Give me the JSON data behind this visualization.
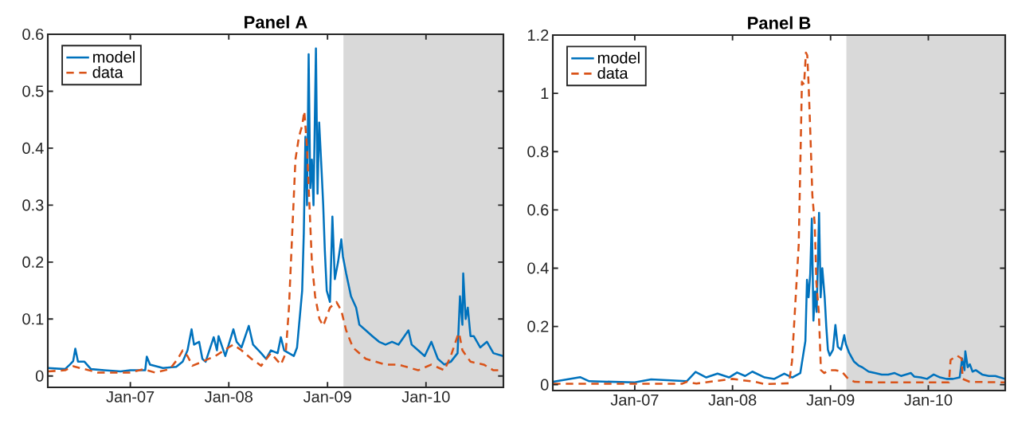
{
  "chart_data": [
    {
      "type": "line",
      "title": "Panel A",
      "xlim": [
        "2006-03-01",
        "2010-10-15"
      ],
      "ylim": [
        -0.02,
        0.6
      ],
      "xticks": [
        {
          "value": "2007-01-01",
          "label": "Jan-07"
        },
        {
          "value": "2008-01-01",
          "label": "Jan-08"
        },
        {
          "value": "2009-01-01",
          "label": "Jan-09"
        },
        {
          "value": "2010-01-01",
          "label": "Jan-10"
        }
      ],
      "yticks": [
        0,
        0.1,
        0.2,
        0.3,
        0.4,
        0.5,
        0.6
      ],
      "legend": "top left",
      "bands": [
        {
          "axis": "x",
          "from": "2009-03-01",
          "to": "2010-10-15",
          "color": "#d9d9d9"
        }
      ],
      "series": [
        {
          "name": "model",
          "color": "#0072bd",
          "line_style": "solid",
          "x": [
            "2006-03-02",
            "2006-05-04",
            "2006-05-22",
            "2006-06-03",
            "2006-06-11",
            "2006-06-21",
            "2006-07-15",
            "2006-08-08",
            "2006-09-26",
            "2006-11-26",
            "2007-01-01",
            "2007-02-25",
            "2007-03-03",
            "2007-03-15",
            "2007-05-02",
            "2007-06-20",
            "2007-07-14",
            "2007-08-01",
            "2007-08-16",
            "2007-08-25",
            "2007-09-13",
            "2007-09-25",
            "2007-10-07",
            "2007-11-06",
            "2007-11-18",
            "2007-11-24",
            "2007-12-19",
            "2008-01-18",
            "2008-01-30",
            "2008-02-17",
            "2008-03-15",
            "2008-03-31",
            "2008-04-30",
            "2008-05-18",
            "2008-06-05",
            "2008-06-30",
            "2008-07-12",
            "2008-07-24",
            "2008-08-11",
            "2008-08-29",
            "2008-09-10",
            "2008-09-29",
            "2008-10-05",
            "2008-10-11",
            "2008-10-17",
            "2008-10-23",
            "2008-10-29",
            "2008-11-04",
            "2008-11-10",
            "2008-11-19",
            "2008-11-25",
            "2008-12-01",
            "2008-12-10",
            "2008-12-16",
            "2008-12-22",
            "2008-12-29",
            "2009-01-10",
            "2009-01-19",
            "2009-01-28",
            "2009-02-09",
            "2009-02-21",
            "2009-02-27",
            "2009-03-11",
            "2009-03-29",
            "2009-04-17",
            "2009-04-29",
            "2009-05-23",
            "2009-06-16",
            "2009-07-11",
            "2009-08-04",
            "2009-08-28",
            "2009-09-21",
            "2009-10-28",
            "2009-11-09",
            "2009-12-03",
            "2009-12-27",
            "2010-01-21",
            "2010-02-14",
            "2010-03-10",
            "2010-04-03",
            "2010-04-28",
            "2010-05-07",
            "2010-05-16",
            "2010-05-19",
            "2010-05-28",
            "2010-06-05",
            "2010-06-15",
            "2010-06-27",
            "2010-07-21",
            "2010-08-15",
            "2010-09-08",
            "2010-10-14"
          ],
          "values": [
            0.014,
            0.012,
            0.02,
            0.026,
            0.048,
            0.025,
            0.025,
            0.012,
            0.01,
            0.008,
            0.01,
            0.01,
            0.034,
            0.02,
            0.014,
            0.016,
            0.025,
            0.045,
            0.082,
            0.055,
            0.06,
            0.03,
            0.025,
            0.068,
            0.045,
            0.07,
            0.035,
            0.082,
            0.06,
            0.05,
            0.088,
            0.055,
            0.04,
            0.03,
            0.045,
            0.04,
            0.068,
            0.045,
            0.04,
            0.035,
            0.05,
            0.15,
            0.25,
            0.42,
            0.3,
            0.565,
            0.33,
            0.38,
            0.3,
            0.575,
            0.32,
            0.445,
            0.36,
            0.3,
            0.22,
            0.15,
            0.13,
            0.28,
            0.17,
            0.2,
            0.24,
            0.21,
            0.18,
            0.14,
            0.12,
            0.09,
            0.08,
            0.07,
            0.06,
            0.055,
            0.06,
            0.055,
            0.08,
            0.055,
            0.045,
            0.035,
            0.06,
            0.03,
            0.02,
            0.025,
            0.04,
            0.14,
            0.09,
            0.18,
            0.1,
            0.12,
            0.07,
            0.07,
            0.05,
            0.06,
            0.04,
            0.035
          ]
        },
        {
          "name": "data",
          "color": "#d95319",
          "line_style": "dashed",
          "x": [
            "2006-03-02",
            "2006-05-04",
            "2006-06-03",
            "2006-07-15",
            "2006-09-02",
            "2006-11-01",
            "2007-01-01",
            "2007-02-19",
            "2007-04-02",
            "2007-05-27",
            "2007-06-26",
            "2007-07-14",
            "2007-08-01",
            "2007-08-19",
            "2007-09-25",
            "2007-11-12",
            "2007-12-31",
            "2008-01-18",
            "2008-02-17",
            "2008-03-25",
            "2008-04-30",
            "2008-06-05",
            "2008-07-12",
            "2008-07-30",
            "2008-08-11",
            "2008-08-23",
            "2008-09-04",
            "2008-09-17",
            "2008-09-29",
            "2008-10-07",
            "2008-10-17",
            "2008-10-26",
            "2008-11-04",
            "2008-11-16",
            "2008-12-02",
            "2008-12-16",
            "2009-01-10",
            "2009-02-03",
            "2009-02-21",
            "2009-03-11",
            "2009-04-05",
            "2009-05-23",
            "2009-08-04",
            "2009-09-21",
            "2009-12-03",
            "2010-01-21",
            "2010-03-10",
            "2010-04-03",
            "2010-04-28",
            "2010-05-04",
            "2010-05-16",
            "2010-06-15",
            "2010-08-03",
            "2010-09-08",
            "2010-10-14"
          ],
          "values": [
            0.008,
            0.01,
            0.017,
            0.012,
            0.006,
            0.006,
            0.006,
            0.012,
            0.006,
            0.012,
            0.03,
            0.045,
            0.035,
            0.018,
            0.025,
            0.035,
            0.05,
            0.055,
            0.045,
            0.03,
            0.018,
            0.04,
            0.02,
            0.04,
            0.12,
            0.25,
            0.38,
            0.42,
            0.44,
            0.465,
            0.4,
            0.3,
            0.2,
            0.14,
            0.1,
            0.088,
            0.12,
            0.13,
            0.115,
            0.08,
            0.05,
            0.03,
            0.02,
            0.02,
            0.01,
            0.02,
            0.01,
            0.035,
            0.07,
            0.075,
            0.045,
            0.025,
            0.02,
            0.01,
            0.01
          ]
        }
      ]
    },
    {
      "type": "line",
      "title": "Panel B",
      "xlim": [
        "2006-03-01",
        "2010-10-15"
      ],
      "ylim": [
        -0.02,
        1.2
      ],
      "xticks": [
        {
          "value": "2007-01-01",
          "label": "Jan-07"
        },
        {
          "value": "2008-01-01",
          "label": "Jan-08"
        },
        {
          "value": "2009-01-01",
          "label": "Jan-09"
        },
        {
          "value": "2010-01-01",
          "label": "Jan-10"
        }
      ],
      "yticks": [
        0,
        0.2,
        0.4,
        0.6,
        0.8,
        1,
        1.2
      ],
      "legend": "top left",
      "bands": [
        {
          "axis": "x",
          "from": "2009-03-01",
          "to": "2010-10-15",
          "color": "#d9d9d9"
        }
      ],
      "series": [
        {
          "name": "model",
          "color": "#0072bd",
          "line_style": "solid",
          "x": [
            "2006-03-02",
            "2006-06-11",
            "2006-07-15",
            "2007-01-01",
            "2007-03-03",
            "2007-07-14",
            "2007-08-16",
            "2007-09-25",
            "2007-11-06",
            "2007-12-19",
            "2008-01-18",
            "2008-02-17",
            "2008-03-15",
            "2008-04-30",
            "2008-06-05",
            "2008-07-12",
            "2008-08-11",
            "2008-09-10",
            "2008-09-29",
            "2008-10-05",
            "2008-10-11",
            "2008-10-17",
            "2008-10-23",
            "2008-10-29",
            "2008-11-04",
            "2008-11-10",
            "2008-11-19",
            "2008-11-25",
            "2008-12-01",
            "2008-12-10",
            "2008-12-16",
            "2008-12-22",
            "2008-12-29",
            "2009-01-10",
            "2009-01-19",
            "2009-01-28",
            "2009-02-09",
            "2009-02-21",
            "2009-02-27",
            "2009-03-11",
            "2009-03-29",
            "2009-04-17",
            "2009-04-29",
            "2009-05-23",
            "2009-06-16",
            "2009-07-11",
            "2009-08-04",
            "2009-08-28",
            "2009-09-21",
            "2009-10-28",
            "2009-11-09",
            "2009-12-03",
            "2009-12-27",
            "2010-01-21",
            "2010-02-14",
            "2010-03-10",
            "2010-04-03",
            "2010-04-28",
            "2010-05-07",
            "2010-05-16",
            "2010-05-19",
            "2010-05-28",
            "2010-06-05",
            "2010-06-15",
            "2010-06-27",
            "2010-07-21",
            "2010-08-15",
            "2010-09-08",
            "2010-10-14"
          ],
          "values": [
            0.01,
            0.026,
            0.012,
            0.008,
            0.018,
            0.012,
            0.044,
            0.025,
            0.038,
            0.025,
            0.042,
            0.03,
            0.045,
            0.025,
            0.02,
            0.038,
            0.025,
            0.04,
            0.15,
            0.36,
            0.3,
            0.38,
            0.57,
            0.22,
            0.32,
            0.25,
            0.59,
            0.3,
            0.4,
            0.3,
            0.2,
            0.12,
            0.1,
            0.12,
            0.205,
            0.13,
            0.12,
            0.17,
            0.14,
            0.11,
            0.08,
            0.065,
            0.06,
            0.045,
            0.04,
            0.035,
            0.035,
            0.04,
            0.03,
            0.04,
            0.028,
            0.025,
            0.02,
            0.035,
            0.025,
            0.02,
            0.02,
            0.025,
            0.09,
            0.05,
            0.115,
            0.06,
            0.07,
            0.045,
            0.05,
            0.035,
            0.03,
            0.03,
            0.02
          ]
        },
        {
          "name": "data",
          "color": "#d95319",
          "line_style": "dashed",
          "x": [
            "2006-03-02",
            "2007-06-26",
            "2007-07-14",
            "2007-08-19",
            "2007-12-31",
            "2008-03-25",
            "2008-04-30",
            "2008-07-30",
            "2008-08-10",
            "2008-09-04",
            "2008-09-10",
            "2008-09-16",
            "2008-09-24",
            "2008-10-01",
            "2008-10-06",
            "2008-10-11",
            "2008-10-18",
            "2008-10-25",
            "2008-11-03",
            "2008-11-09",
            "2008-11-18",
            "2008-11-26",
            "2008-12-08",
            "2008-12-26",
            "2009-01-19",
            "2009-02-12",
            "2009-03-08",
            "2009-04-01",
            "2009-06-23",
            "2009-12-19",
            "2010-03-19",
            "2010-03-25",
            "2010-04-18",
            "2010-05-05",
            "2010-05-09",
            "2010-06-04",
            "2010-10-14"
          ],
          "values": [
            0.003,
            0.003,
            0.01,
            0.004,
            0.02,
            0.01,
            0.002,
            0.005,
            0.08,
            0.48,
            0.75,
            1.04,
            1.03,
            1.14,
            1.13,
            1.03,
            0.85,
            0.65,
            0.55,
            0.35,
            0.25,
            0.05,
            0.04,
            0.05,
            0.05,
            0.045,
            0.02,
            0.01,
            0.008,
            0.008,
            0.008,
            0.085,
            0.1,
            0.09,
            0.02,
            0.01,
            0.008
          ]
        }
      ]
    }
  ]
}
